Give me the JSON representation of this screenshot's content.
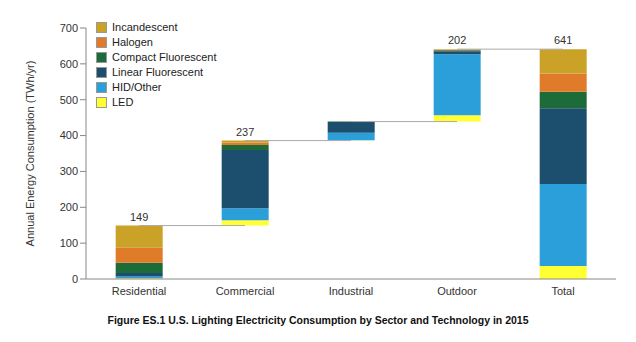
{
  "chart_data": {
    "type": "waterfall",
    "title": "Figure ES.1 U.S. Lighting Electricity Consumption by Sector and Technology in 2015",
    "y_label": "Annual Energy Consumption (TWh/yr)",
    "categories": [
      "Residential",
      "Commercial",
      "Industrial",
      "Outdoor",
      "Total"
    ],
    "series": [
      {
        "name": "Incandescent",
        "color": "#c9a227",
        "values": [
          62,
          5,
          0,
          1,
          68
        ]
      },
      {
        "name": "Halogen",
        "color": "#e07b2a",
        "values": [
          42,
          7,
          0,
          2,
          51
        ]
      },
      {
        "name": "Compact Fluorescent",
        "color": "#1e6b3a",
        "values": [
          28,
          14,
          1,
          3,
          46
        ]
      },
      {
        "name": "Linear Fluorescent",
        "color": "#1c4e6e",
        "values": [
          10,
          163,
          30,
          8,
          211
        ]
      },
      {
        "name": "HID/Other",
        "color": "#2b9fd9",
        "values": [
          5,
          33,
          21,
          170,
          229
        ]
      },
      {
        "name": "LED",
        "color": "#ffff33",
        "values": [
          2,
          15,
          1,
          18,
          36
        ]
      }
    ],
    "totals": [
      149,
      237,
      53,
      202,
      641
    ],
    "ylim": [
      0,
      700
    ],
    "yticks": [
      0,
      100,
      200,
      300,
      400,
      500,
      600,
      700
    ],
    "stacked": true,
    "legend": "upper left",
    "grid": false
  }
}
